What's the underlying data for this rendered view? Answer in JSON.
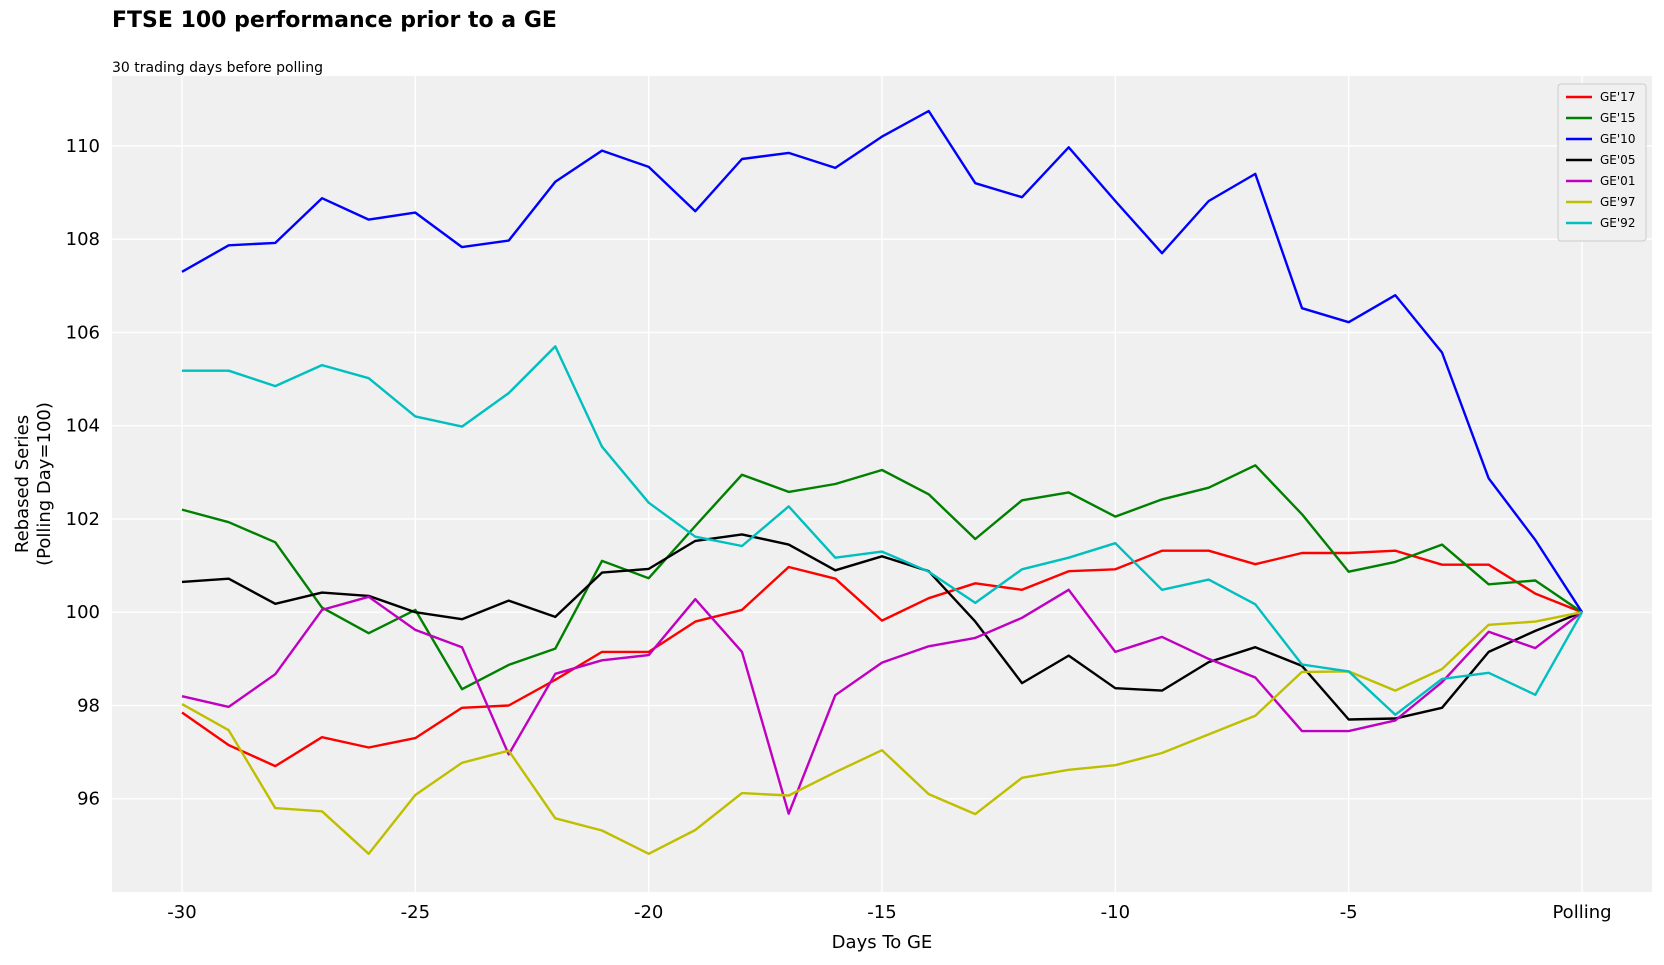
{
  "chart_data": {
    "type": "line",
    "title": "FTSE 100 performance prior to a GE",
    "subtitle": "30 trading days before polling",
    "xlabel": "Days To GE",
    "ylabel_line1": "Rebased Series",
    "ylabel_line2": "(Polling Day=100)",
    "x": [
      -30,
      -29,
      -28,
      -27,
      -26,
      -25,
      -24,
      -23,
      -22,
      -21,
      -20,
      -19,
      -18,
      -17,
      -16,
      -15,
      -14,
      -13,
      -12,
      -11,
      -10,
      -9,
      -8,
      -7,
      -6,
      -5,
      -4,
      -3,
      -2,
      -1,
      0
    ],
    "xlim": [
      -31.5,
      1.5
    ],
    "ylim": [
      94.0,
      111.5
    ],
    "x_ticks": [
      {
        "value": -30,
        "label": "-30"
      },
      {
        "value": -25,
        "label": "-25"
      },
      {
        "value": -20,
        "label": "-20"
      },
      {
        "value": -15,
        "label": "-15"
      },
      {
        "value": -10,
        "label": "-10"
      },
      {
        "value": -5,
        "label": "-5"
      },
      {
        "value": 0,
        "label": "Polling"
      }
    ],
    "y_ticks": [
      {
        "value": 96,
        "label": "96"
      },
      {
        "value": 98,
        "label": "98"
      },
      {
        "value": 100,
        "label": "100"
      },
      {
        "value": 102,
        "label": "102"
      },
      {
        "value": 104,
        "label": "104"
      },
      {
        "value": 106,
        "label": "106"
      },
      {
        "value": 108,
        "label": "108"
      },
      {
        "value": 110,
        "label": "110"
      }
    ],
    "grid": true,
    "legend_position": "top-right",
    "plot_background": "#f0f0f0",
    "series": [
      {
        "name": "GE'17",
        "color": "#ff0000",
        "values": [
          97.85,
          97.15,
          96.7,
          97.32,
          97.1,
          97.3,
          97.95,
          98.0,
          98.55,
          99.15,
          99.15,
          99.8,
          100.05,
          100.97,
          100.72,
          99.82,
          100.3,
          100.62,
          100.48,
          100.88,
          100.92,
          101.32,
          101.32,
          101.03,
          101.27,
          101.27,
          101.32,
          101.02,
          101.02,
          100.4,
          100.0
        ]
      },
      {
        "name": "GE'15",
        "color": "#008000",
        "values": [
          102.2,
          101.93,
          101.5,
          100.1,
          99.55,
          100.05,
          98.35,
          98.87,
          99.22,
          101.1,
          100.73,
          101.85,
          102.95,
          102.58,
          102.75,
          103.05,
          102.53,
          101.57,
          102.4,
          102.57,
          102.05,
          102.42,
          102.67,
          103.15,
          102.1,
          100.87,
          101.08,
          101.45,
          100.6,
          100.68,
          100.0
        ]
      },
      {
        "name": "GE'10",
        "color": "#0000ff",
        "values": [
          107.3,
          107.87,
          107.92,
          108.88,
          108.42,
          108.57,
          107.83,
          107.97,
          109.23,
          109.9,
          109.55,
          108.6,
          109.72,
          109.85,
          109.53,
          110.2,
          110.75,
          109.2,
          108.9,
          109.97,
          108.82,
          107.7,
          108.82,
          109.4,
          106.52,
          106.22,
          106.8,
          105.57,
          102.87,
          101.55,
          100.0
        ]
      },
      {
        "name": "GE'05",
        "color": "#000000",
        "values": [
          100.65,
          100.72,
          100.18,
          100.42,
          100.35,
          100.0,
          99.85,
          100.25,
          99.9,
          100.85,
          100.93,
          101.53,
          101.67,
          101.45,
          100.9,
          101.2,
          100.88,
          99.8,
          98.48,
          99.07,
          98.37,
          98.32,
          98.93,
          99.25,
          98.85,
          97.7,
          97.72,
          97.95,
          99.15,
          99.6,
          100.0
        ]
      },
      {
        "name": "GE'01",
        "color": "#c000c0",
        "values": [
          98.2,
          97.97,
          98.67,
          100.05,
          100.33,
          99.62,
          99.25,
          96.95,
          98.68,
          98.97,
          99.08,
          100.28,
          99.15,
          95.68,
          98.22,
          98.92,
          99.27,
          99.45,
          99.88,
          100.48,
          99.15,
          99.47,
          99.0,
          98.6,
          97.45,
          97.45,
          97.68,
          98.5,
          99.58,
          99.23,
          100.0
        ]
      },
      {
        "name": "GE'97",
        "color": "#bfbf00",
        "values": [
          98.03,
          97.47,
          95.8,
          95.73,
          94.82,
          96.08,
          96.77,
          97.03,
          95.58,
          95.32,
          94.82,
          95.33,
          96.12,
          96.07,
          96.57,
          97.04,
          96.1,
          95.67,
          96.45,
          96.62,
          96.72,
          96.98,
          97.38,
          97.78,
          98.72,
          98.73,
          98.32,
          98.78,
          99.73,
          99.8,
          100.0
        ]
      },
      {
        "name": "GE'92",
        "color": "#00bfbf",
        "values": [
          105.18,
          105.18,
          104.85,
          105.3,
          105.02,
          104.2,
          103.98,
          104.7,
          105.7,
          103.55,
          102.35,
          101.62,
          101.42,
          102.27,
          101.17,
          101.3,
          100.87,
          100.2,
          100.92,
          101.17,
          101.48,
          100.48,
          100.7,
          100.17,
          98.88,
          98.73,
          97.8,
          98.57,
          98.7,
          98.23,
          100.0
        ]
      }
    ]
  }
}
